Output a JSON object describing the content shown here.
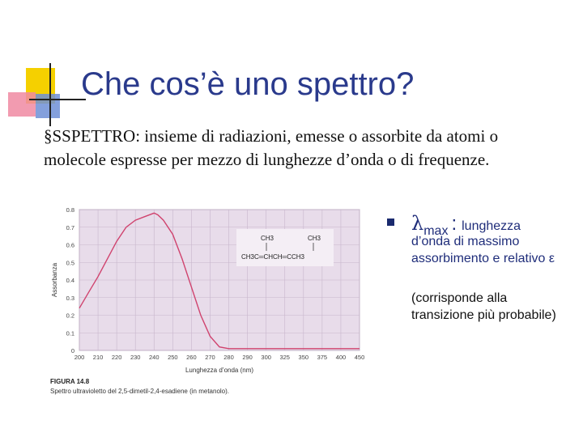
{
  "slide": {
    "title": "Che cos’è uno spettro?",
    "body": "§SSPETTRO: insieme di radiazioni, emesse o assorbite da atomi o molecole espresse per mezzo di lunghezze d’onda o di frequenze."
  },
  "figure": {
    "caption_label": "FIGURA 14.8",
    "caption_text": "Spettro ultravioletto del 2,5-dimetil-2,4-esadiene (in metanolo).",
    "structure_top_left": "CH3",
    "structure_top_right": "CH3",
    "structure_formula": "CH3C═CHCH═CCH3"
  },
  "chart_data": {
    "type": "line",
    "xlabel": "Lunghezza d’onda (nm)",
    "ylabel": "Assorbanza",
    "xlim": [
      200,
      450
    ],
    "ylim": [
      0.0,
      0.8
    ],
    "x_ticks": [
      "200",
      "210",
      "220",
      "230",
      "240",
      "250",
      "260",
      "270",
      "280",
      "290",
      "300",
      "325",
      "350",
      "375",
      "400",
      "450"
    ],
    "y_ticks": [
      "0",
      "0.1",
      "0.2",
      "0.3",
      "0.4",
      "0.5",
      "0.6",
      "0.7",
      "0.8"
    ],
    "grid": true,
    "series": [
      {
        "x": [
          200,
          205,
          210,
          215,
          220,
          225,
          230,
          235,
          240,
          242,
          245,
          250,
          255,
          260,
          265,
          270,
          275,
          280,
          290,
          300,
          325,
          350,
          375,
          400,
          450
        ],
        "y": [
          0.24,
          0.33,
          0.42,
          0.52,
          0.62,
          0.7,
          0.74,
          0.76,
          0.78,
          0.77,
          0.74,
          0.66,
          0.52,
          0.36,
          0.2,
          0.08,
          0.02,
          0.01,
          0.01,
          0.01,
          0.01,
          0.01,
          0.01,
          0.01,
          0.01
        ]
      }
    ]
  },
  "bullet": {
    "symbol": "λ",
    "subscript": "max",
    "colon": ":",
    "desc_first": "lunghezza",
    "desc_rest": "d’onda di massimo assorbimento e relativo ε",
    "paren": "(corrisponde alla transizione più probabile)"
  },
  "colors": {
    "title": "#2a3a8c",
    "plot_bg": "#e8dcea",
    "curve": "#d0436e",
    "deco_yellow": "#f5d000",
    "deco_red": "#ef2060",
    "deco_blue": "#2f5fb8"
  }
}
